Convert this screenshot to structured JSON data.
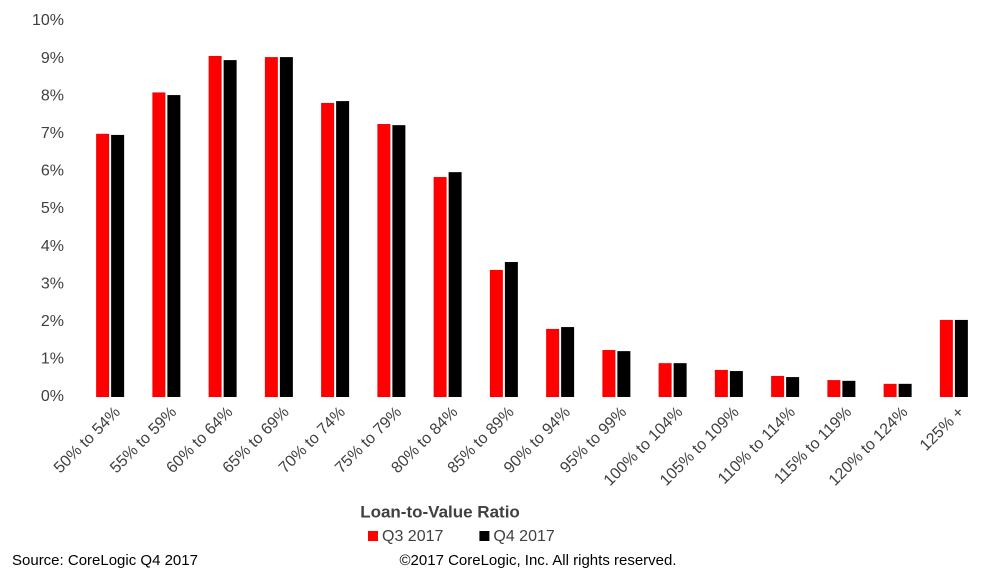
{
  "chart_data": {
    "type": "bar",
    "x_label": "Loan-to-Value Ratio",
    "source": "Source: CoreLogic Q4 2017",
    "copyright": "©2017 CoreLogic, Inc. All rights reserved.",
    "categories": [
      "50% to 54%",
      "55% to 59%",
      "60% to 64%",
      "65% to 69%",
      "70% to 74%",
      "75% to 79%",
      "80% to 84%",
      "85% to 89%",
      "90% to 94%",
      "95% to 99%",
      "100% to 104%",
      "105% to 109%",
      "110% to 114%",
      "115% to 119%",
      "120% to 124%",
      "125% +"
    ],
    "series": [
      {
        "name": "Q3 2017",
        "color": "#ff0000",
        "values": [
          7.0,
          8.1,
          9.07,
          9.04,
          7.82,
          7.26,
          5.85,
          3.38,
          1.81,
          1.25,
          0.9,
          0.72,
          0.56,
          0.45,
          0.35,
          2.05
        ]
      },
      {
        "name": "Q4 2017",
        "color": "#000000",
        "values": [
          6.97,
          8.03,
          8.96,
          9.04,
          7.87,
          7.23,
          5.98,
          3.59,
          1.86,
          1.22,
          0.9,
          0.69,
          0.53,
          0.43,
          0.35,
          2.05
        ]
      }
    ],
    "ylim": [
      0,
      10
    ],
    "yticks": [
      {
        "value": 0,
        "label": "0%"
      },
      {
        "value": 1,
        "label": "1%"
      },
      {
        "value": 2,
        "label": "2%"
      },
      {
        "value": 3,
        "label": "3%"
      },
      {
        "value": 4,
        "label": "4%"
      },
      {
        "value": 5,
        "label": "5%"
      },
      {
        "value": 6,
        "label": "6%"
      },
      {
        "value": 7,
        "label": "7%"
      },
      {
        "value": 8,
        "label": "8%"
      },
      {
        "value": 9,
        "label": "9%"
      },
      {
        "value": 10,
        "label": "10%"
      }
    ],
    "grid": false,
    "legend": "bottom"
  }
}
